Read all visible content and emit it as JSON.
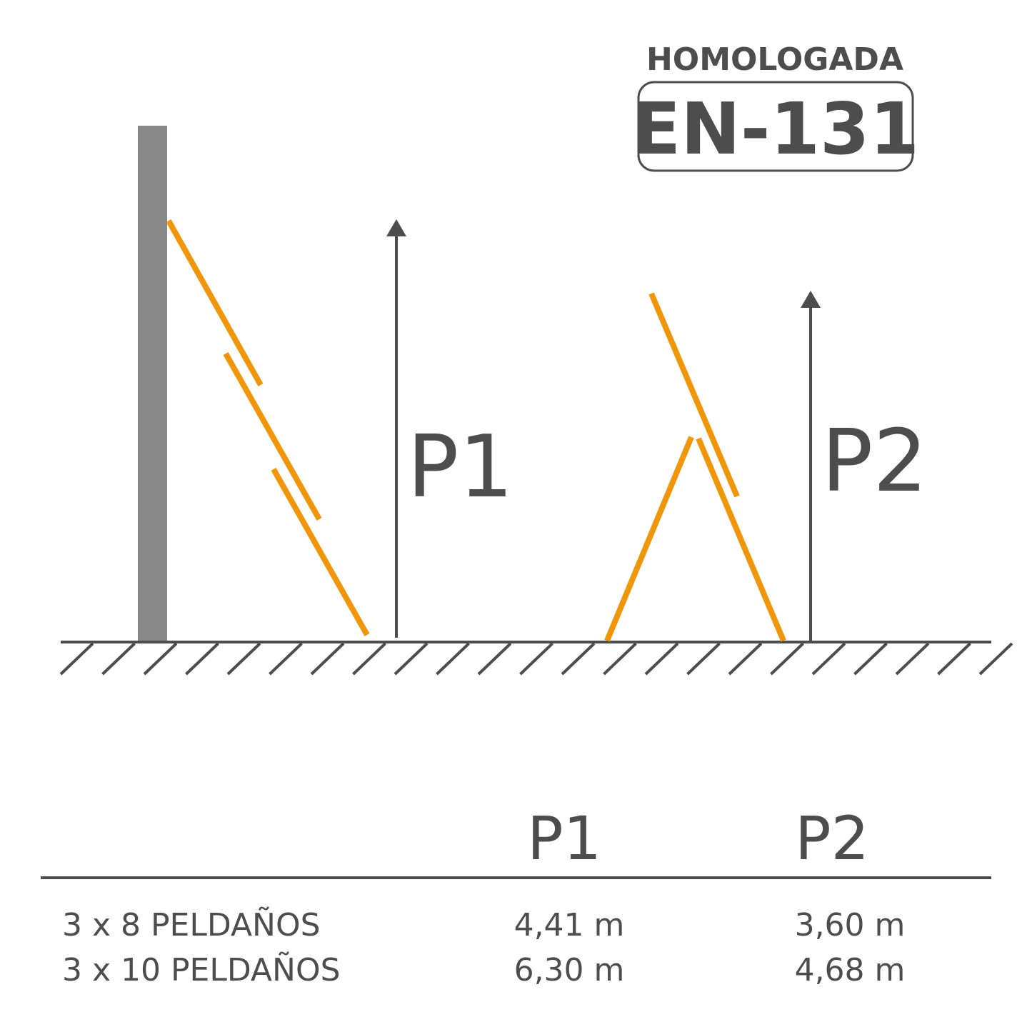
{
  "badge": {
    "caption": "HOMOLOGADA",
    "code": "EN-131"
  },
  "diagram": {
    "label_left": "P1",
    "label_right": "P2"
  },
  "table": {
    "header": [
      "P1",
      "P2"
    ],
    "rows": [
      [
        "3 x 8 PELDAÑOS",
        "4,41 m",
        "3,60 m"
      ],
      [
        "3 x 10 PELDAÑOS",
        "6,30 m",
        "4,68 m"
      ]
    ]
  }
}
